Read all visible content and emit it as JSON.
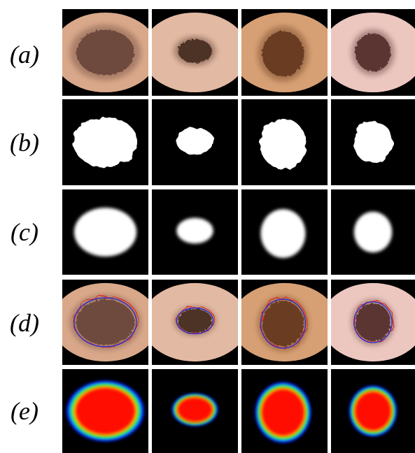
{
  "rows": [
    {
      "label": "(a)"
    },
    {
      "label": "(b)"
    },
    {
      "label": "(c)"
    },
    {
      "label": "(d)"
    },
    {
      "label": "(e)"
    }
  ]
}
